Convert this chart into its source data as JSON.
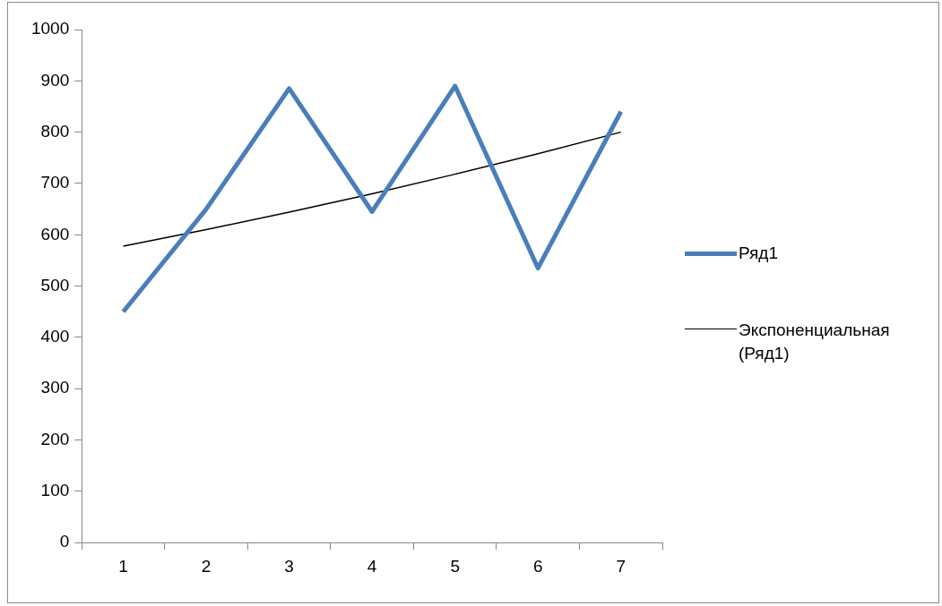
{
  "chart_data": {
    "type": "line",
    "categories": [
      "1",
      "2",
      "3",
      "4",
      "5",
      "6",
      "7"
    ],
    "series": [
      {
        "name": "Ряд1",
        "color": "#4a7ebb",
        "values": [
          450,
          650,
          885,
          645,
          890,
          535,
          840
        ]
      },
      {
        "name": "Экспоненциальная (Ряд1)",
        "color": "#000000",
        "values": [
          578,
          610,
          644,
          680,
          718,
          758,
          800
        ]
      }
    ],
    "ylim": [
      0,
      1000
    ],
    "yticks": [
      0,
      100,
      200,
      300,
      400,
      500,
      600,
      700,
      800,
      900,
      1000
    ],
    "grid": false,
    "legend": "right",
    "marker": "none",
    "line_style": "solid"
  }
}
